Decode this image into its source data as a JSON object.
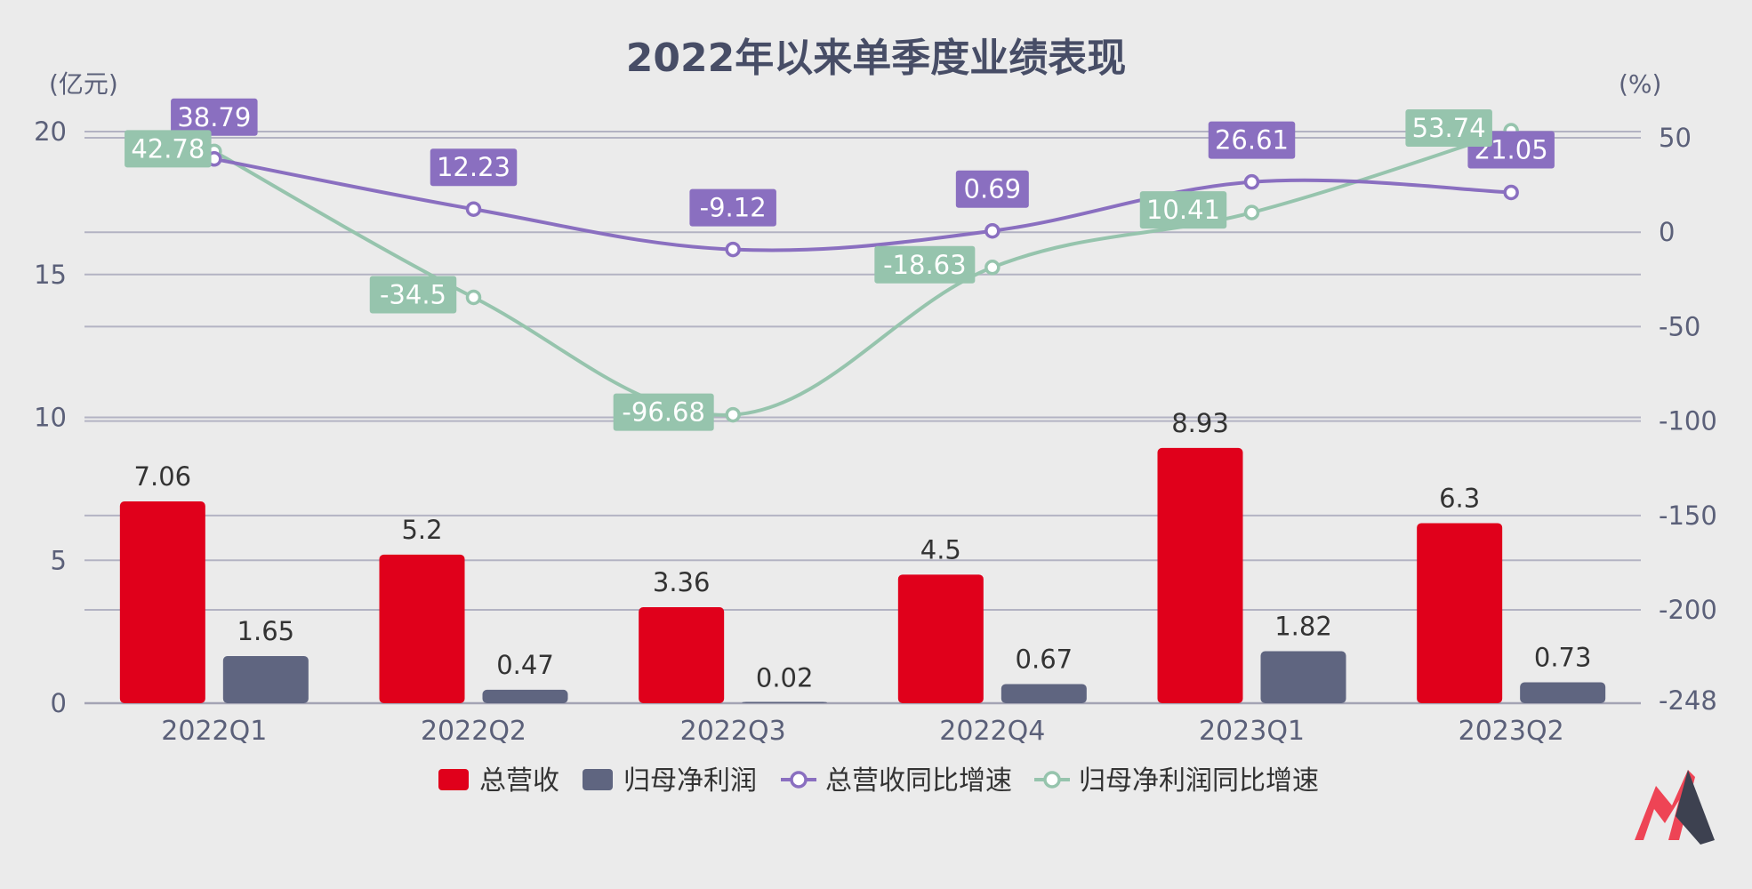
{
  "chart_data": {
    "type": "bar",
    "title": "2022年以来单季度业绩表现",
    "left_axis_unit": "(亿元)",
    "right_axis_unit": "(%)",
    "categories": [
      "2022Q1",
      "2022Q2",
      "2022Q3",
      "2022Q4",
      "2023Q1",
      "2023Q2"
    ],
    "left_axis": {
      "min": 0,
      "max": 20,
      "ticks": [
        0,
        5,
        10,
        15,
        20
      ]
    },
    "right_axis": {
      "min": -248,
      "max": 50,
      "ticks": [
        50,
        0,
        -50,
        -100,
        -150,
        -200,
        -248
      ]
    },
    "grid": true,
    "legend_position": "bottom",
    "series": [
      {
        "name": "总营收",
        "type": "bar",
        "axis": "left",
        "color": "#e0001b",
        "values": [
          7.06,
          5.2,
          3.36,
          4.5,
          8.93,
          6.3
        ],
        "labels": [
          "7.06",
          "5.2",
          "3.36",
          "4.5",
          "8.93",
          "6.3"
        ]
      },
      {
        "name": "归母净利润",
        "type": "bar",
        "axis": "left",
        "color": "#5f6580",
        "values": [
          1.65,
          0.47,
          0.02,
          0.67,
          1.82,
          0.73
        ],
        "labels": [
          "1.65",
          "0.47",
          "0.02",
          "0.67",
          "1.82",
          "0.73"
        ]
      },
      {
        "name": "总营收同比增速",
        "type": "line",
        "axis": "right",
        "color": "#8a6fc0",
        "values": [
          38.79,
          12.23,
          -9.12,
          0.69,
          26.61,
          21.05
        ],
        "labels": [
          "38.79",
          "12.23",
          "-9.12",
          "0.69",
          "26.61",
          "21.05"
        ]
      },
      {
        "name": "归母净利润同比增速",
        "type": "line",
        "axis": "right",
        "color": "#96c4ad",
        "values": [
          42.78,
          -34.5,
          -96.68,
          -18.63,
          10.41,
          53.74
        ],
        "labels": [
          "42.78",
          "-34.5",
          "-96.68",
          "-18.63",
          "10.41",
          "53.74"
        ]
      }
    ]
  },
  "colors": {
    "background": "#ebebeb",
    "title": "#474d66",
    "axis_text": "#5b6079",
    "grid": "#b3b3c3",
    "value_label": "#333333",
    "logo_red": "#ee4455",
    "logo_dark": "#3d4150"
  },
  "logo": {
    "name": "brand-logo"
  }
}
